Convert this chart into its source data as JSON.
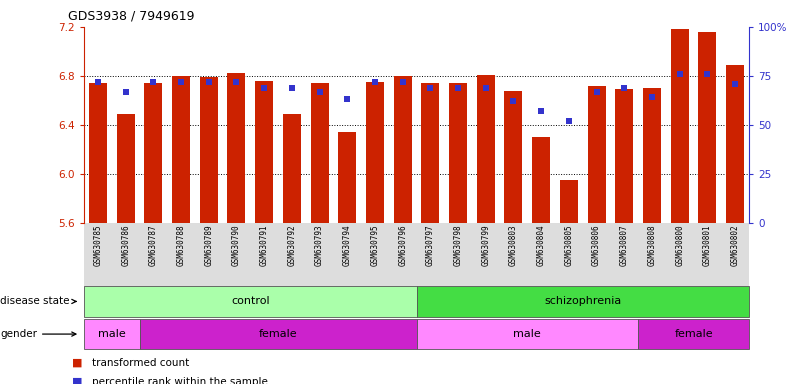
{
  "title": "GDS3938 / 7949619",
  "samples": [
    "GSM630785",
    "GSM630786",
    "GSM630787",
    "GSM630788",
    "GSM630789",
    "GSM630790",
    "GSM630791",
    "GSM630792",
    "GSM630793",
    "GSM630794",
    "GSM630795",
    "GSM630796",
    "GSM630797",
    "GSM630798",
    "GSM630799",
    "GSM630803",
    "GSM630804",
    "GSM630805",
    "GSM630806",
    "GSM630807",
    "GSM630808",
    "GSM630800",
    "GSM630801",
    "GSM630802"
  ],
  "bar_values": [
    6.74,
    6.49,
    6.74,
    6.8,
    6.79,
    6.82,
    6.76,
    6.49,
    6.74,
    6.34,
    6.75,
    6.8,
    6.74,
    6.74,
    6.81,
    6.68,
    6.3,
    5.95,
    6.72,
    6.69,
    6.7,
    7.18,
    7.16,
    6.89
  ],
  "percentile_values": [
    72,
    67,
    72,
    72,
    72,
    72,
    69,
    69,
    67,
    63,
    72,
    72,
    69,
    69,
    69,
    62,
    57,
    52,
    67,
    69,
    64,
    76,
    76,
    71
  ],
  "bar_bottom": 5.6,
  "ylim_left": [
    5.6,
    7.2
  ],
  "ylim_right": [
    0,
    100
  ],
  "yticks_left": [
    5.6,
    6.0,
    6.4,
    6.8,
    7.2
  ],
  "yticks_right": [
    0,
    25,
    50,
    75,
    100
  ],
  "ytick_labels_right": [
    "0",
    "25",
    "50",
    "75",
    "100%"
  ],
  "bar_color": "#CC2200",
  "dot_color": "#3333CC",
  "disease_colors": {
    "control": "#AAFFAA",
    "schizophrenia": "#44DD44"
  },
  "gender_colors": {
    "male": "#FF88FF",
    "female": "#CC22CC"
  },
  "disease_groups": [
    {
      "label": "control",
      "start": 0,
      "end": 11,
      "color_key": "control"
    },
    {
      "label": "schizophrenia",
      "start": 12,
      "end": 23,
      "color_key": "schizophrenia"
    }
  ],
  "gender_groups": [
    {
      "label": "male",
      "start": 0,
      "end": 1,
      "color_key": "male"
    },
    {
      "label": "female",
      "start": 2,
      "end": 11,
      "color_key": "female"
    },
    {
      "label": "male",
      "start": 12,
      "end": 19,
      "color_key": "male"
    },
    {
      "label": "female",
      "start": 20,
      "end": 23,
      "color_key": "female"
    }
  ],
  "bg_color": "#FFFFFF",
  "left_tick_color": "#CC2200",
  "right_tick_color": "#3333CC",
  "ax_bg_color": "#FFFFFF",
  "xtick_bg_color": "#DDDDDD",
  "grid_yticks": [
    6.0,
    6.4,
    6.8
  ]
}
